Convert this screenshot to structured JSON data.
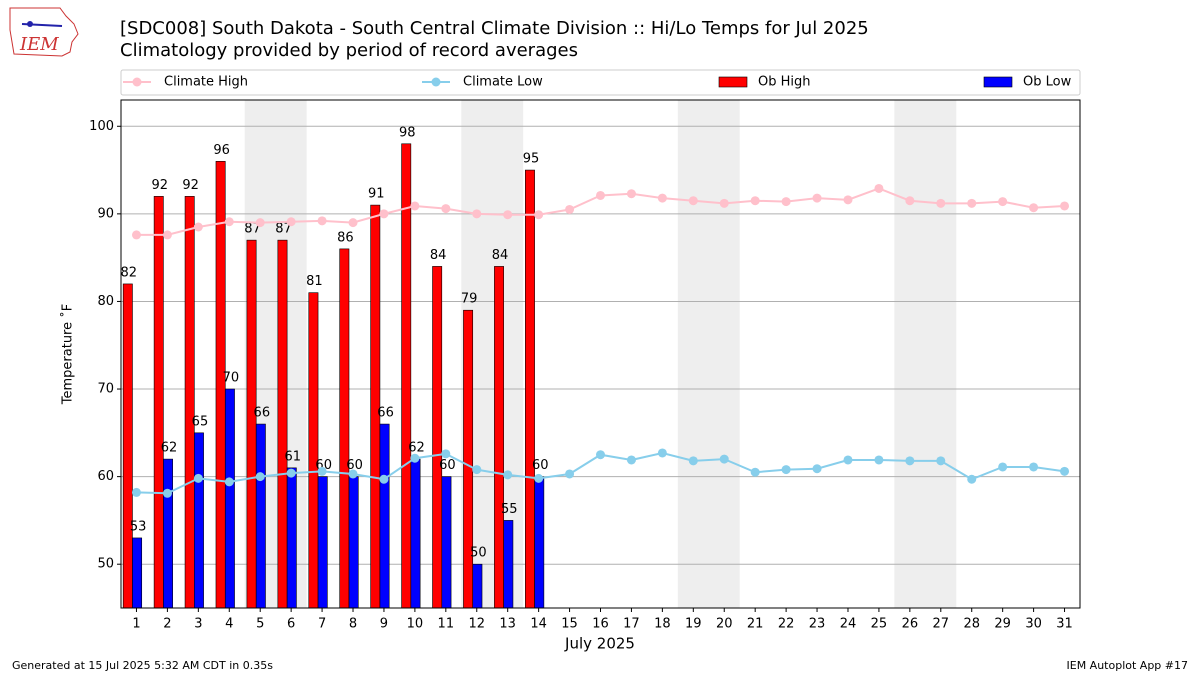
{
  "logo_text": "IEM",
  "chart_data": {
    "type": "bar_line",
    "title": "[SDC008] South Dakota - South Central Climate Division :: Hi/Lo Temps for Jul 2025",
    "subtitle": "Climatology provided by period of record averages",
    "xlabel": "July 2025",
    "ylabel": "Temperature ˚F",
    "footer_left": "Generated at 15 Jul 2025 5:32 AM CDT in 0.35s",
    "footer_right": "IEM Autoplot App #17",
    "categories": [
      "1",
      "2",
      "3",
      "4",
      "5",
      "6",
      "7",
      "8",
      "9",
      "10",
      "11",
      "12",
      "13",
      "14",
      "15",
      "16",
      "17",
      "18",
      "19",
      "20",
      "21",
      "22",
      "23",
      "24",
      "25",
      "26",
      "27",
      "28",
      "29",
      "30",
      "31"
    ],
    "xlim": [
      0.5,
      31.5
    ],
    "shaded_spans": [
      [
        4.5,
        6.5
      ],
      [
        11.5,
        13.5
      ],
      [
        18.5,
        20.5
      ],
      [
        25.5,
        27.5
      ]
    ],
    "shade_color": "#eeeeee",
    "ylim": [
      45,
      103
    ],
    "yticks": [
      50,
      60,
      70,
      80,
      90,
      100
    ],
    "grid": true,
    "series": [
      {
        "name": "Climate High",
        "kind": "line",
        "color": "#ffc0cb",
        "values": [
          87.6,
          87.6,
          88.5,
          89.1,
          89.0,
          89.1,
          89.2,
          89.0,
          90.0,
          90.9,
          90.6,
          90.0,
          89.9,
          89.9,
          90.5,
          92.1,
          92.3,
          91.8,
          91.5,
          91.2,
          91.5,
          91.4,
          91.8,
          91.6,
          92.9,
          91.5,
          91.2,
          91.2,
          91.4,
          90.7,
          90.9
        ]
      },
      {
        "name": "Climate Low",
        "kind": "line",
        "color": "#87ceeb",
        "values": [
          58.2,
          58.1,
          59.8,
          59.4,
          60.0,
          60.4,
          60.6,
          60.3,
          59.7,
          62.1,
          62.6,
          60.8,
          60.2,
          59.8,
          60.3,
          62.5,
          61.9,
          62.7,
          61.8,
          62.0,
          60.5,
          60.8,
          60.9,
          61.9,
          61.9,
          61.8,
          61.8,
          59.7,
          61.1,
          61.1,
          60.6
        ]
      },
      {
        "name": "Ob High",
        "kind": "bar",
        "color": "#ff0000",
        "values": [
          82,
          92,
          92,
          96,
          87,
          87,
          81,
          86,
          91,
          98,
          84,
          79,
          84,
          95,
          null,
          null,
          null,
          null,
          null,
          null,
          null,
          null,
          null,
          null,
          null,
          null,
          null,
          null,
          null,
          null,
          null
        ]
      },
      {
        "name": "Ob Low",
        "kind": "bar",
        "color": "#0000ff",
        "values": [
          53,
          62,
          65,
          70,
          66,
          61,
          60,
          60,
          66,
          62,
          60,
          50,
          55,
          60,
          null,
          null,
          null,
          null,
          null,
          null,
          null,
          null,
          null,
          null,
          null,
          null,
          null,
          null,
          null,
          null,
          null
        ]
      }
    ]
  }
}
